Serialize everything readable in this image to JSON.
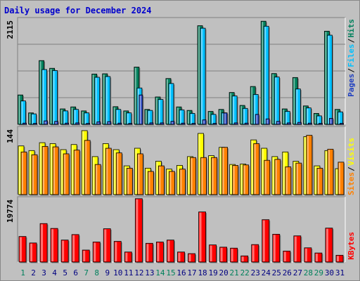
{
  "title": "Daily usage for December 2024",
  "colors": {
    "hits": "#00805c",
    "files": "#00c0ff",
    "pages": "#2040c0",
    "visits": "#ffff00",
    "sites": "#ff8000",
    "kbytes": "#ff0000",
    "weekend_day": "#00805c",
    "weekday_day": "#000080"
  },
  "chart_data": [
    {
      "type": "bar",
      "title": "Hits / Files / Pages",
      "ytick": "2115",
      "right_labels": [
        "Pages",
        "Files",
        "Hits"
      ],
      "ylim": [
        0,
        2115
      ],
      "categories": [
        "1",
        "2",
        "3",
        "4",
        "5",
        "6",
        "7",
        "8",
        "9",
        "10",
        "11",
        "12",
        "13",
        "14",
        "15",
        "16",
        "17",
        "18",
        "19",
        "20",
        "21",
        "22",
        "23",
        "24",
        "25",
        "26",
        "27",
        "28",
        "29",
        "30",
        "31"
      ],
      "series": [
        {
          "name": "Hits",
          "values": [
            590,
            230,
            1280,
            1125,
            310,
            350,
            270,
            1010,
            1015,
            355,
            270,
            1150,
            300,
            550,
            920,
            350,
            280,
            1980,
            260,
            300,
            640,
            380,
            760,
            2070,
            1020,
            310,
            940,
            370,
            220,
            1870,
            300
          ]
        },
        {
          "name": "Files",
          "values": [
            470,
            210,
            1100,
            1080,
            270,
            300,
            230,
            945,
            960,
            300,
            230,
            730,
            280,
            500,
            820,
            290,
            220,
            1930,
            200,
            230,
            570,
            320,
            600,
            1970,
            950,
            260,
            710,
            330,
            170,
            1790,
            250
          ]
        },
        {
          "name": "Pages",
          "values": [
            25,
            20,
            70,
            60,
            25,
            30,
            20,
            50,
            55,
            25,
            20,
            590,
            30,
            30,
            60,
            25,
            20,
            90,
            20,
            230,
            30,
            25,
            200,
            110,
            60,
            30,
            40,
            25,
            20,
            120,
            20
          ]
        }
      ]
    },
    {
      "type": "bar",
      "title": "Visits / Sites",
      "ytick": "144",
      "right_labels": [
        "Sites",
        "Visits"
      ],
      "ylim": [
        0,
        144
      ],
      "categories": [
        "1",
        "2",
        "3",
        "4",
        "5",
        "6",
        "7",
        "8",
        "9",
        "10",
        "11",
        "12",
        "13",
        "14",
        "15",
        "16",
        "17",
        "18",
        "19",
        "20",
        "21",
        "22",
        "23",
        "24",
        "25",
        "26",
        "27",
        "28",
        "29",
        "30",
        "31"
      ],
      "series": [
        {
          "name": "Visits",
          "values": [
            105,
            95,
            112,
            110,
            97,
            108,
            138,
            82,
            110,
            97,
            62,
            100,
            57,
            72,
            55,
            63,
            82,
            132,
            84,
            102,
            65,
            66,
            118,
            100,
            82,
            92,
            72,
            125,
            62,
            95,
            56
          ]
        },
        {
          "name": "Sites",
          "values": [
            92,
            86,
            104,
            103,
            88,
            96,
            117,
            65,
            100,
            90,
            57,
            88,
            50,
            62,
            50,
            55,
            80,
            80,
            80,
            102,
            63,
            64,
            110,
            74,
            76,
            60,
            68,
            128,
            57,
            98,
            70
          ]
        }
      ]
    },
    {
      "type": "bar",
      "title": "KBytes",
      "ytick": "19774",
      "right_labels": [
        "KBytes"
      ],
      "ylim": [
        0,
        19774
      ],
      "categories": [
        "1",
        "2",
        "3",
        "4",
        "5",
        "6",
        "7",
        "8",
        "9",
        "10",
        "11",
        "12",
        "13",
        "14",
        "15",
        "16",
        "17",
        "18",
        "19",
        "20",
        "21",
        "22",
        "23",
        "24",
        "25",
        "26",
        "27",
        "28",
        "29",
        "30",
        "31"
      ],
      "series": [
        {
          "name": "KBytes",
          "values": [
            7900,
            5900,
            11900,
            10400,
            6800,
            8500,
            3700,
            6200,
            10300,
            6400,
            3100,
            19600,
            5800,
            6200,
            6800,
            3100,
            2600,
            15500,
            5300,
            4600,
            4300,
            1900,
            5400,
            13100,
            8600,
            3400,
            8100,
            4400,
            2800,
            10500,
            2100
          ]
        }
      ]
    }
  ]
}
